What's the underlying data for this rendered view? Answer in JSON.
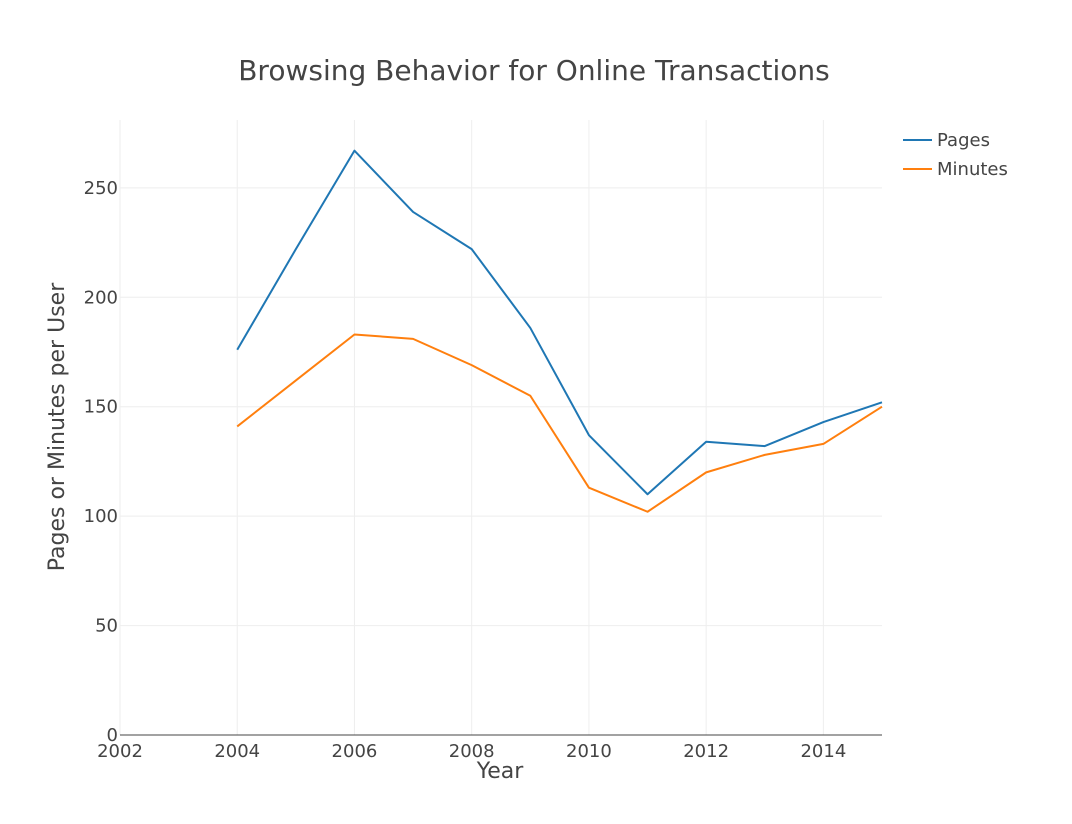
{
  "chart_data": {
    "type": "line",
    "title": "Browsing Behavior for Online Transactions",
    "xlabel": "Year",
    "ylabel": "Pages or Minutes per User",
    "xlim": [
      2002,
      2015
    ],
    "ylim": [
      0,
      281
    ],
    "x_ticks": [
      2002,
      2004,
      2006,
      2008,
      2010,
      2012,
      2014
    ],
    "y_ticks": [
      0,
      50,
      100,
      150,
      200,
      250
    ],
    "grid": true,
    "legend_position": "top-right",
    "x": [
      2004,
      2005,
      2006,
      2007,
      2008,
      2009,
      2010,
      2011,
      2012,
      2013,
      2014,
      2015
    ],
    "series": [
      {
        "name": "Pages",
        "color": "#1f77b4",
        "values": [
          176,
          222,
          267,
          239,
          222,
          186,
          137,
          110,
          134,
          132,
          143,
          152
        ]
      },
      {
        "name": "Minutes",
        "color": "#ff7f0e",
        "values": [
          141,
          162,
          183,
          181,
          169,
          155,
          113,
          102,
          120,
          128,
          133,
          150
        ]
      }
    ]
  }
}
